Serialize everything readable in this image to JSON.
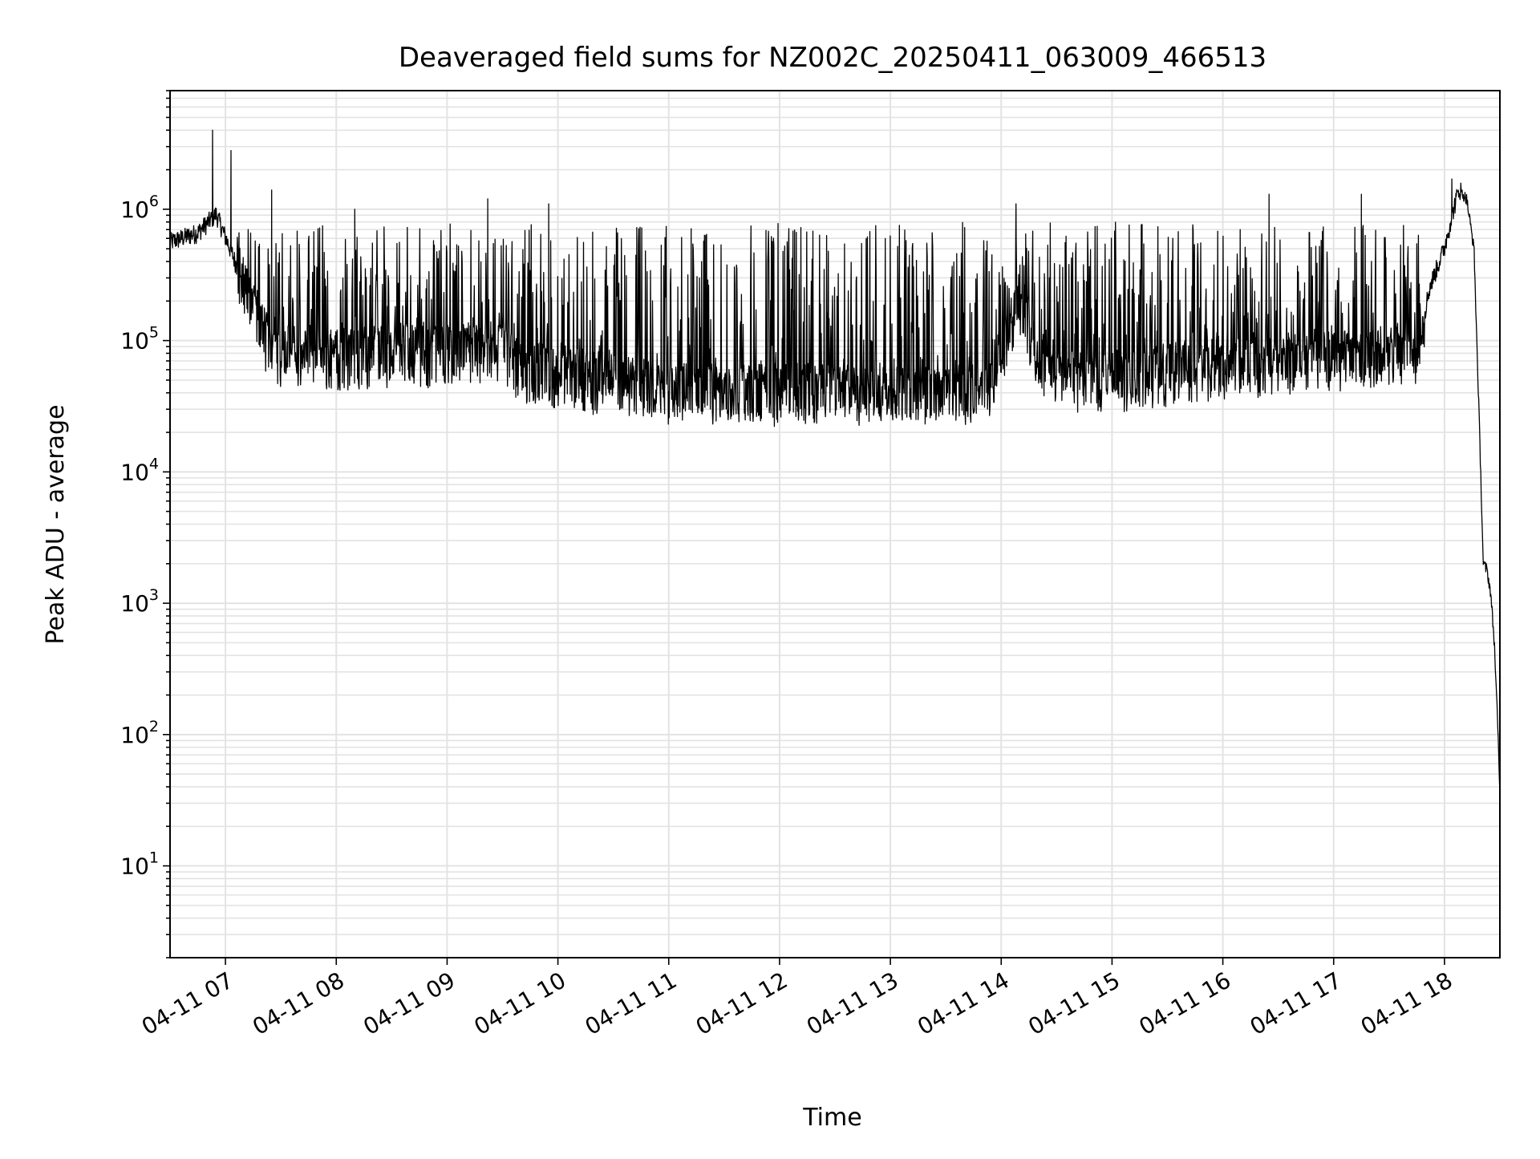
{
  "chart_data": {
    "type": "line",
    "title": "Deaveraged field sums for NZ002C_20250411_063009_466513",
    "xlabel": "Time",
    "ylabel": "Peak ADU - average",
    "yscale": "log",
    "ylim": [
      2,
      8000000
    ],
    "xlim": [
      "2025-04-11 06:30",
      "2025-04-11 18:30"
    ],
    "grid": "major and minor",
    "line_color": "#000000",
    "grid_color": "#e3e3e3",
    "x_tick_labels": [
      "04-11 07",
      "04-11 08",
      "04-11 09",
      "04-11 10",
      "04-11 11",
      "04-11 12",
      "04-11 13",
      "04-11 14",
      "04-11 15",
      "04-11 16",
      "04-11 17",
      "04-11 18"
    ],
    "y_tick_labels": [
      {
        "base": "10",
        "exp": "1"
      },
      {
        "base": "10",
        "exp": "2"
      },
      {
        "base": "10",
        "exp": "3"
      },
      {
        "base": "10",
        "exp": "4"
      },
      {
        "base": "10",
        "exp": "5"
      },
      {
        "base": "10",
        "exp": "6"
      }
    ],
    "series": [
      {
        "baseline_points": [
          {
            "time": "2025-04-11 06:30",
            "value": 550000
          },
          {
            "time": "2025-04-11 06:45",
            "value": 650000
          },
          {
            "time": "2025-04-11 06:55",
            "value": 900000
          },
          {
            "time": "2025-04-11 07:05",
            "value": 400000
          },
          {
            "time": "2025-04-11 07:12",
            "value": 200000
          },
          {
            "time": "2025-04-11 07:25",
            "value": 80000
          },
          {
            "time": "2025-04-11 08:00",
            "value": 75000
          },
          {
            "time": "2025-04-11 09:00",
            "value": 80000
          },
          {
            "time": "2025-04-11 09:30",
            "value": 90000
          },
          {
            "time": "2025-04-11 09:40",
            "value": 60000
          },
          {
            "time": "2025-04-11 10:00",
            "value": 55000
          },
          {
            "time": "2025-04-11 11:00",
            "value": 40000
          },
          {
            "time": "2025-04-11 12:00",
            "value": 40000
          },
          {
            "time": "2025-04-11 13:00",
            "value": 38000
          },
          {
            "time": "2025-04-11 13:50",
            "value": 35000
          },
          {
            "time": "2025-04-11 14:10",
            "value": 200000
          },
          {
            "time": "2025-04-11 14:20",
            "value": 70000
          },
          {
            "time": "2025-04-11 14:40",
            "value": 50000
          },
          {
            "time": "2025-04-11 15:00",
            "value": 50000
          },
          {
            "time": "2025-04-11 16:00",
            "value": 65000
          },
          {
            "time": "2025-04-11 17:00",
            "value": 70000
          },
          {
            "time": "2025-04-11 17:45",
            "value": 80000
          },
          {
            "time": "2025-04-11 17:52",
            "value": 250000
          },
          {
            "time": "2025-04-11 18:00",
            "value": 500000
          },
          {
            "time": "2025-04-11 18:05",
            "value": 1000000
          },
          {
            "time": "2025-04-11 18:08",
            "value": 1400000
          },
          {
            "time": "2025-04-11 18:12",
            "value": 1200000
          },
          {
            "time": "2025-04-11 18:16",
            "value": 500000
          },
          {
            "time": "2025-04-11 18:19",
            "value": 20000
          },
          {
            "time": "2025-04-11 18:21",
            "value": 2000
          },
          {
            "time": "2025-04-11 18:23",
            "value": 1800
          },
          {
            "time": "2025-04-11 18:25",
            "value": 1200
          },
          {
            "time": "2025-04-11 18:27",
            "value": 500
          },
          {
            "time": "2025-04-11 18:29",
            "value": 100
          },
          {
            "time": "2025-04-11 18:30",
            "value": 35
          }
        ],
        "spike_peaks": [
          {
            "time": "2025-04-11 06:53",
            "value": 4000000
          },
          {
            "time": "2025-04-11 07:03",
            "value": 2800000
          },
          {
            "time": "2025-04-11 07:25",
            "value": 1400000
          },
          {
            "time": "2025-04-11 08:10",
            "value": 1000000
          },
          {
            "time": "2025-04-11 09:22",
            "value": 1200000
          },
          {
            "time": "2025-04-11 09:55",
            "value": 1100000
          },
          {
            "time": "2025-04-11 13:55",
            "value": 450000
          },
          {
            "time": "2025-04-11 14:08",
            "value": 1100000
          },
          {
            "time": "2025-04-11 16:25",
            "value": 1300000
          },
          {
            "time": "2025-04-11 17:15",
            "value": 1300000
          },
          {
            "time": "2025-04-11 18:04",
            "value": 1700000
          }
        ],
        "spike_envelope_upper_typical": 700000,
        "floor_typical_minimum": 25000
      }
    ]
  }
}
